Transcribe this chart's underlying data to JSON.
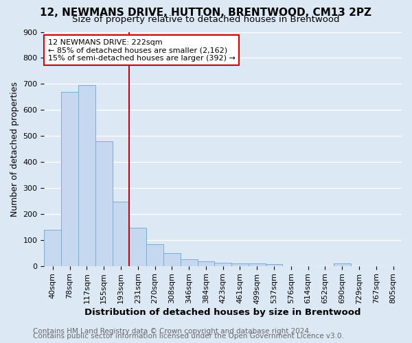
{
  "title1": "12, NEWMANS DRIVE, HUTTON, BRENTWOOD, CM13 2PZ",
  "title2": "Size of property relative to detached houses in Brentwood",
  "xlabel": "Distribution of detached houses by size in Brentwood",
  "ylabel": "Number of detached properties",
  "categories": [
    "40sqm",
    "78sqm",
    "117sqm",
    "155sqm",
    "193sqm",
    "231sqm",
    "270sqm",
    "308sqm",
    "346sqm",
    "384sqm",
    "423sqm",
    "461sqm",
    "499sqm",
    "537sqm",
    "576sqm",
    "614sqm",
    "652sqm",
    "690sqm",
    "729sqm",
    "767sqm",
    "805sqm"
  ],
  "values": [
    140,
    670,
    695,
    480,
    248,
    148,
    83,
    50,
    25,
    18,
    12,
    10,
    10,
    7,
    0,
    0,
    0,
    10,
    0,
    0,
    0
  ],
  "bar_color": "#c5d8f0",
  "bar_edge_color": "#7aadd4",
  "background_color": "#dde8f5",
  "grid_color": "#ffffff",
  "vline_x": 4.5,
  "vline_color": "#cc0000",
  "annotation_line1": "12 NEWMANS DRIVE: 222sqm",
  "annotation_line2": "← 85% of detached houses are smaller (2,162)",
  "annotation_line3": "15% of semi-detached houses are larger (392) →",
  "annotation_box_color": "#ffffff",
  "annotation_box_edge_color": "#cc0000",
  "ylim": [
    0,
    900
  ],
  "yticks": [
    0,
    100,
    200,
    300,
    400,
    500,
    600,
    700,
    800,
    900
  ],
  "footer1": "Contains HM Land Registry data © Crown copyright and database right 2024.",
  "footer2": "Contains public sector information licensed under the Open Government Licence v3.0.",
  "title1_fontsize": 11,
  "title2_fontsize": 9.5,
  "xlabel_fontsize": 9.5,
  "ylabel_fontsize": 9,
  "tick_fontsize": 8,
  "annotation_fontsize": 8,
  "footer_fontsize": 7.5
}
